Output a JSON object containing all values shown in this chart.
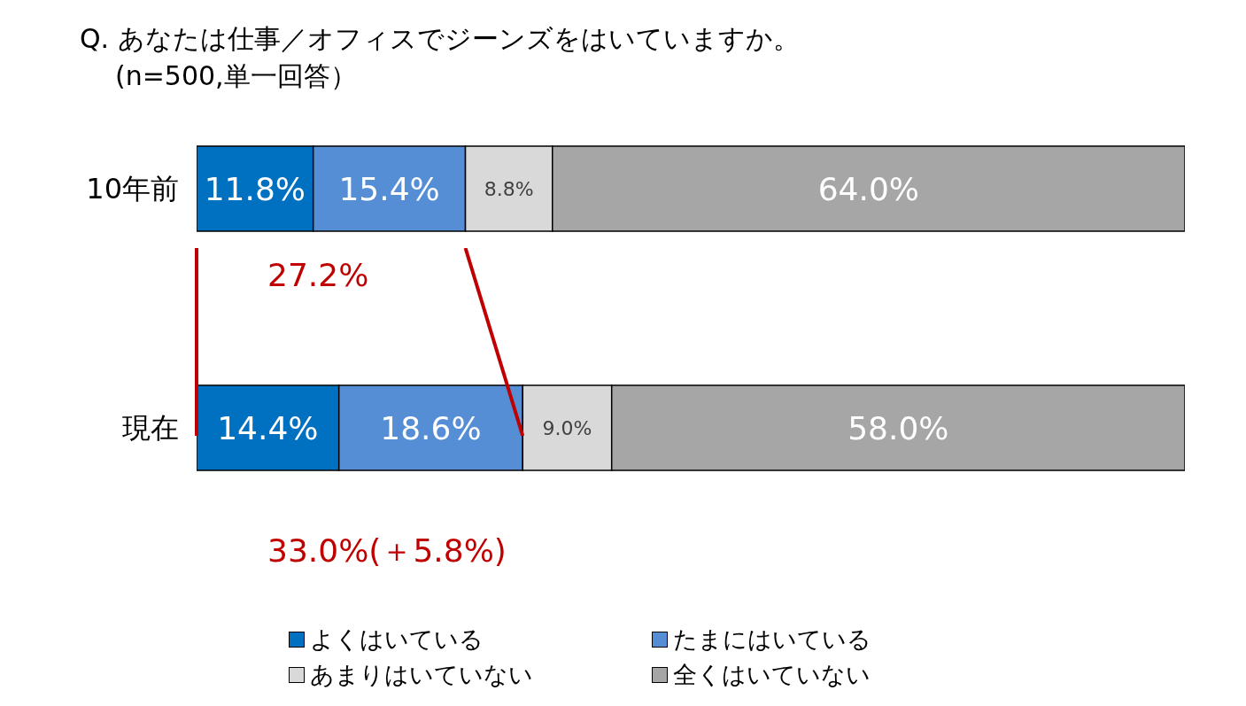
{
  "chart_data": {
    "type": "bar",
    "orientation": "horizontal",
    "stacked": true,
    "title": "Q. あなたは仕事／オフィスでジーンズをはいていますか。",
    "subtitle": "(n=500,単一回答）",
    "categories": [
      "10年前",
      "現在"
    ],
    "series": [
      {
        "name": "よくはいている",
        "color": "#0070c0",
        "values": [
          11.8,
          14.4
        ],
        "value_labels": [
          "11.8%",
          "14.4%"
        ]
      },
      {
        "name": "たまにはいている",
        "color": "#558ed5",
        "values": [
          15.4,
          18.6
        ],
        "value_labels": [
          "15.4%",
          "18.6%"
        ]
      },
      {
        "name": "あまりはいていない",
        "color": "#d9d9d9",
        "values": [
          8.8,
          9.0
        ],
        "value_labels": [
          "8.8%",
          "9.0%"
        ]
      },
      {
        "name": "全くはいていない",
        "color": "#a6a6a6",
        "values": [
          64.0,
          58.0
        ],
        "value_labels": [
          "64.0%",
          "58.0%"
        ]
      }
    ],
    "xlim": [
      0,
      100
    ],
    "tick_labels": "y",
    "grid": false,
    "legend": "bottom",
    "annotations": [
      "27.2%",
      "33.0%(＋5.8%)"
    ]
  }
}
